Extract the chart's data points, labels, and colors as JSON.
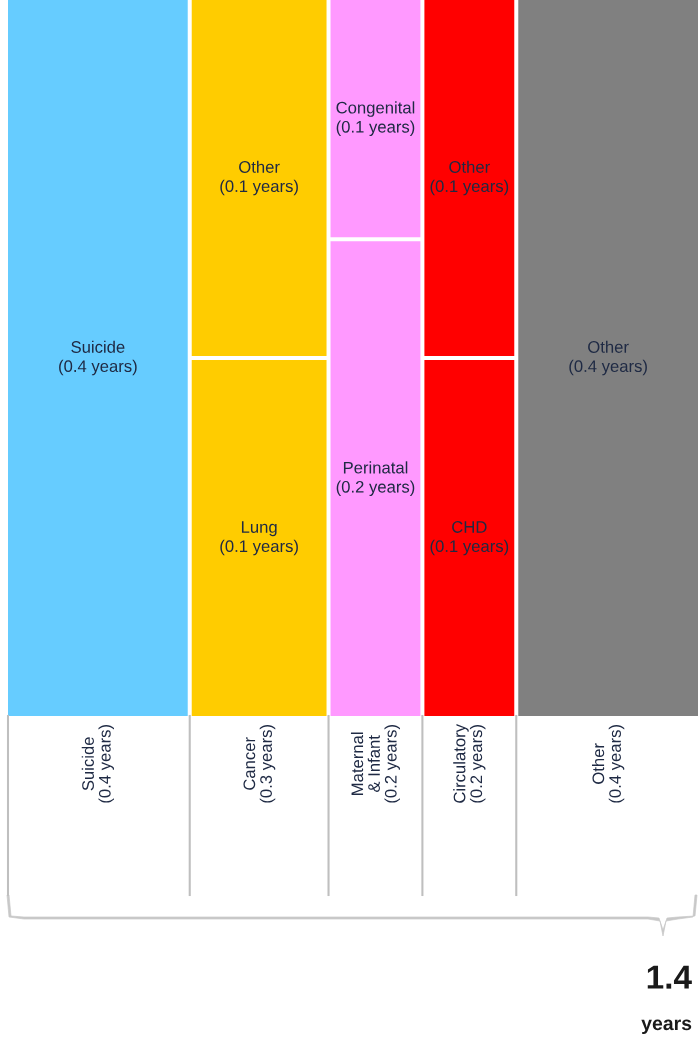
{
  "chart_data": {
    "type": "other",
    "categories": [
      "Suicide",
      "Cancer",
      "Maternal\n& Infant",
      "Circulatory",
      "Other"
    ],
    "values": [
      0.4,
      0.3,
      0.2,
      0.2,
      0.4
    ],
    "value_labels": [
      "(0.4 years)",
      "(0.3 years)",
      "(0.2 years)",
      "(0.2 years)",
      "(0.4 years)"
    ],
    "series": [
      {
        "values": [
          0.4,
          0.1,
          0.2,
          0.1,
          0.4
        ],
        "colors": [
          "#66ccff",
          "#ffcc00",
          "#ff99ff",
          "#ff0000",
          "#808080"
        ],
        "value_labels": [
          "Suicide\n(0.4 years)",
          "Lung\n(0.1 years)",
          "Perinatal\n(0.2 years)",
          "CHD\n(0.1 years)",
          "Other\n(0.4 years)"
        ]
      },
      {
        "values": [
          null,
          0.1,
          0.1,
          0.1,
          null
        ],
        "colors": [
          null,
          "#ffcc00",
          "#ff99ff",
          "#ff0000",
          null
        ],
        "value_labels": [
          null,
          "Other\n(0.1 years)",
          "Congenital\n(0.1 years)",
          "Other\n(0.1 years)",
          null
        ]
      }
    ],
    "annotations": [
      "1.4",
      "years"
    ]
  }
}
